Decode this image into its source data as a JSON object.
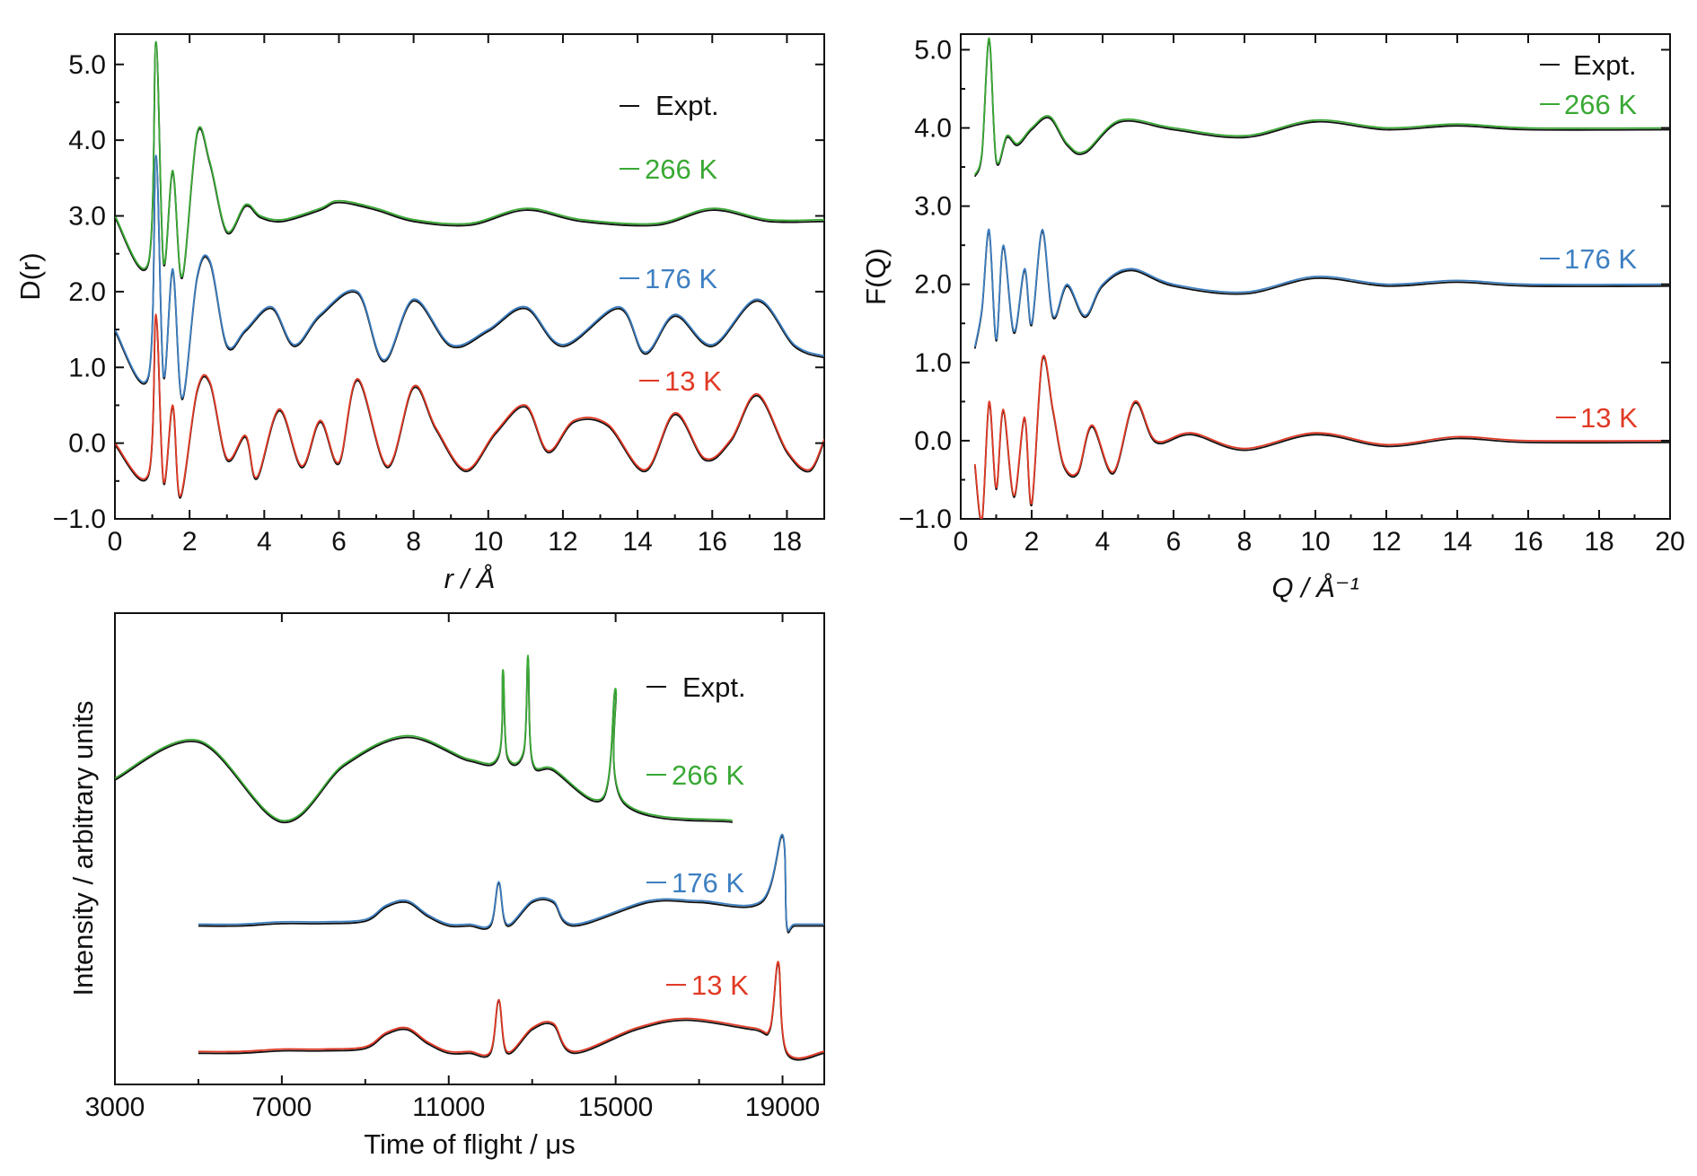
{
  "colors": {
    "expt": "#111111",
    "266K": "#3aa935",
    "176K": "#3d7fc1",
    "13K": "#e13a26"
  },
  "chart_data": [
    {
      "type": "line",
      "name": "D(r)",
      "xlabel": "r / Å",
      "ylabel": "D(r)",
      "xlim": [
        0,
        19
      ],
      "ylim": [
        -1.0,
        5.4
      ],
      "xticks": [
        "0",
        "2",
        "4",
        "6",
        "8",
        "10",
        "12",
        "14",
        "16",
        "18"
      ],
      "yticks": [
        "−1.0",
        "0.0",
        "1.0",
        "2.0",
        "3.0",
        "4.0",
        "5.0"
      ],
      "legend": {
        "expt": "Expt.",
        "items": [
          "266 K",
          "176 K",
          "13 K"
        ]
      },
      "series": [
        {
          "name": "266 K",
          "offset": 3.0,
          "x": [
            0,
            0.9,
            1.1,
            1.3,
            1.55,
            1.8,
            2.2,
            2.55,
            3.0,
            3.5,
            3.9,
            4.5,
            5.5,
            6.0,
            7.0,
            8.0,
            9.5,
            11.0,
            12.5,
            14.5,
            16.0,
            17.5,
            19.0
          ],
          "y": [
            3.0,
            2.4,
            5.3,
            2.4,
            3.6,
            2.2,
            4.1,
            3.7,
            2.8,
            3.15,
            3.0,
            2.95,
            3.1,
            3.2,
            3.1,
            2.95,
            2.9,
            3.1,
            2.95,
            2.9,
            3.1,
            2.95,
            2.95
          ]
        },
        {
          "name": "176 K",
          "offset": 1.5,
          "x": [
            0,
            0.9,
            1.1,
            1.3,
            1.55,
            1.8,
            2.2,
            2.55,
            3.0,
            3.5,
            4.2,
            4.8,
            5.5,
            6.5,
            7.2,
            8.0,
            9.0,
            10.0,
            11.0,
            12.0,
            13.5,
            14.2,
            15.0,
            16.0,
            17.2,
            18.2,
            19.0
          ],
          "y": [
            1.5,
            0.9,
            3.8,
            0.9,
            2.3,
            0.6,
            2.2,
            2.4,
            1.3,
            1.5,
            1.8,
            1.3,
            1.7,
            2.0,
            1.1,
            1.9,
            1.3,
            1.5,
            1.8,
            1.3,
            1.8,
            1.2,
            1.7,
            1.3,
            1.9,
            1.3,
            1.15
          ]
        },
        {
          "name": "13 K",
          "offset": 0.0,
          "x": [
            0,
            0.9,
            1.1,
            1.3,
            1.55,
            1.75,
            2.2,
            2.55,
            3.0,
            3.5,
            3.8,
            4.4,
            5.0,
            5.5,
            6.0,
            6.5,
            7.3,
            8.0,
            8.6,
            9.4,
            10.2,
            11.0,
            11.6,
            12.3,
            13.2,
            14.2,
            15.0,
            15.8,
            16.5,
            17.2,
            18.0,
            18.6,
            19.0
          ],
          "y": [
            0.0,
            -0.4,
            1.7,
            -0.5,
            0.5,
            -0.7,
            0.7,
            0.8,
            -0.2,
            0.1,
            -0.45,
            0.45,
            -0.3,
            0.3,
            -0.25,
            0.85,
            -0.3,
            0.75,
            0.2,
            -0.35,
            0.15,
            0.5,
            -0.1,
            0.3,
            0.25,
            -0.35,
            0.4,
            -0.2,
            0.05,
            0.65,
            -0.1,
            -0.35,
            0.05
          ]
        }
      ]
    },
    {
      "type": "line",
      "name": "F(Q)",
      "xlabel": "Q / Å⁻¹",
      "ylabel": "F(Q)",
      "xlim": [
        0,
        20
      ],
      "ylim": [
        -1.0,
        5.2
      ],
      "xticks": [
        "0",
        "2",
        "4",
        "6",
        "8",
        "10",
        "12",
        "14",
        "16",
        "18",
        "20"
      ],
      "yticks": [
        "−1.0",
        "0.0",
        "1.0",
        "2.0",
        "3.0",
        "4.0",
        "5.0"
      ],
      "legend": {
        "expt": "Expt.",
        "items": [
          "266 K",
          "176 K",
          "13 K"
        ]
      },
      "series": [
        {
          "name": "266 K",
          "offset": 4.0,
          "x": [
            0.4,
            0.6,
            0.8,
            1.0,
            1.3,
            1.6,
            2.0,
            2.5,
            3.0,
            3.5,
            4.5,
            6.0,
            8.0,
            10.0,
            12.0,
            14.0,
            16.0,
            20.0
          ],
          "y": [
            3.4,
            3.7,
            5.15,
            3.6,
            3.9,
            3.8,
            4.0,
            4.15,
            3.8,
            3.7,
            4.1,
            4.0,
            3.9,
            4.1,
            4.0,
            4.05,
            4.0,
            4.0
          ]
        },
        {
          "name": "176 K",
          "offset": 2.0,
          "x": [
            0.4,
            0.6,
            0.8,
            1.0,
            1.2,
            1.5,
            1.8,
            2.0,
            2.3,
            2.6,
            3.0,
            3.5,
            4.0,
            4.8,
            6.0,
            8.0,
            10.0,
            12.0,
            14.0,
            16.0,
            20.0
          ],
          "y": [
            1.2,
            1.7,
            2.7,
            1.3,
            2.5,
            1.4,
            2.2,
            1.5,
            2.7,
            1.6,
            2.0,
            1.6,
            2.0,
            2.2,
            2.0,
            1.9,
            2.1,
            2.0,
            2.05,
            2.0,
            2.0
          ]
        },
        {
          "name": "13 K",
          "offset": 0.0,
          "x": [
            0.4,
            0.6,
            0.8,
            1.0,
            1.2,
            1.5,
            1.8,
            2.0,
            2.3,
            2.6,
            2.9,
            3.3,
            3.7,
            4.3,
            4.9,
            5.5,
            6.5,
            8.0,
            10.0,
            12.0,
            14.0,
            16.0,
            20.0
          ],
          "y": [
            -0.3,
            -1.0,
            0.5,
            -0.6,
            0.4,
            -0.7,
            0.3,
            -0.8,
            1.05,
            0.4,
            -0.3,
            -0.4,
            0.2,
            -0.4,
            0.5,
            0.0,
            0.1,
            -0.1,
            0.1,
            -0.05,
            0.05,
            0.0,
            0.0
          ]
        }
      ]
    },
    {
      "type": "line",
      "name": "Time of flight",
      "xlabel": "Time of flight / μs",
      "ylabel": "Intensity / arbitrary units",
      "xlim": [
        3000,
        20000
      ],
      "ylim": [
        0,
        10
      ],
      "xticks": [
        "3000",
        "7000",
        "11000",
        "15000",
        "19000"
      ],
      "yticks": [],
      "legend": {
        "expt": "Expt.",
        "items": [
          "266 K",
          "176 K",
          "13 K"
        ]
      },
      "series": [
        {
          "name": "266 K",
          "x": [
            3000,
            5000,
            7000,
            8500,
            10000,
            11500,
            12200,
            12300,
            12400,
            12800,
            12900,
            13000,
            13500,
            14700,
            15000,
            15200,
            17800
          ],
          "y": [
            6.5,
            7.3,
            5.6,
            6.8,
            7.4,
            6.9,
            7.0,
            8.8,
            7.0,
            7.1,
            9.1,
            6.9,
            6.7,
            6.1,
            8.4,
            6.0,
            5.6
          ]
        },
        {
          "name": "176 K",
          "x": [
            5000,
            6000,
            7000,
            8000,
            9000,
            9500,
            10000,
            10500,
            11000,
            11500,
            12000,
            12200,
            12400,
            13000,
            13500,
            14000,
            15800,
            17000,
            18500,
            19000,
            19100,
            19300,
            20000
          ],
          "y": [
            3.4,
            3.4,
            3.45,
            3.45,
            3.5,
            3.8,
            3.9,
            3.6,
            3.4,
            3.4,
            3.4,
            4.3,
            3.4,
            3.9,
            3.9,
            3.4,
            3.9,
            3.9,
            3.9,
            5.3,
            3.4,
            3.4,
            3.4
          ]
        },
        {
          "name": "13 K",
          "x": [
            5000,
            6000,
            7000,
            8000,
            9000,
            9500,
            10000,
            10500,
            11000,
            11500,
            12000,
            12200,
            12400,
            13000,
            13500,
            14000,
            15500,
            16700,
            18300,
            18700,
            18900,
            19100,
            20000
          ],
          "y": [
            0.7,
            0.7,
            0.75,
            0.75,
            0.8,
            1.1,
            1.2,
            0.9,
            0.7,
            0.7,
            0.7,
            1.8,
            0.7,
            1.2,
            1.3,
            0.7,
            1.2,
            1.4,
            1.2,
            1.2,
            2.6,
            0.7,
            0.7
          ]
        }
      ]
    }
  ]
}
